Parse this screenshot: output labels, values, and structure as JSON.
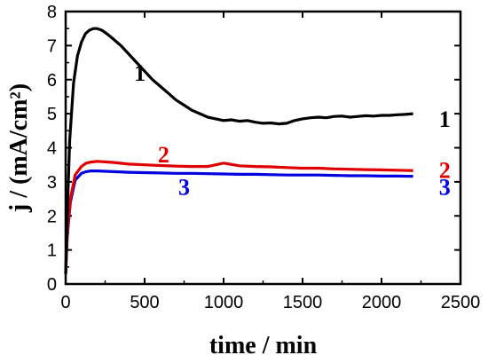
{
  "chart_data": {
    "type": "line",
    "title": "",
    "xlabel": "time / min",
    "ylabel": "j / (mA/cm²)",
    "xlim": [
      0,
      2500
    ],
    "ylim": [
      0,
      8
    ],
    "xticks": [
      "0",
      "500",
      "1000",
      "1500",
      "2000",
      "2500"
    ],
    "yticks": [
      "0",
      "1",
      "2",
      "3",
      "4",
      "5",
      "6",
      "7",
      "8"
    ],
    "grid": false,
    "legend": "none",
    "series": [
      {
        "name": "1",
        "color": "#000000",
        "x": [
          0,
          10,
          25,
          50,
          75,
          100,
          125,
          150,
          175,
          200,
          230,
          260,
          300,
          350,
          400,
          450,
          500,
          550,
          600,
          650,
          700,
          750,
          800,
          850,
          900,
          950,
          1000,
          1050,
          1100,
          1150,
          1200,
          1250,
          1300,
          1350,
          1400,
          1450,
          1500,
          1550,
          1600,
          1650,
          1700,
          1750,
          1800,
          1850,
          1900,
          1950,
          2000,
          2050,
          2100,
          2150,
          2200
        ],
        "y": [
          0.3,
          2.0,
          4.2,
          5.9,
          6.7,
          7.1,
          7.35,
          7.45,
          7.5,
          7.5,
          7.45,
          7.35,
          7.2,
          7.0,
          6.75,
          6.5,
          6.25,
          6.0,
          5.8,
          5.6,
          5.4,
          5.25,
          5.1,
          5.0,
          4.9,
          4.85,
          4.8,
          4.82,
          4.78,
          4.8,
          4.75,
          4.72,
          4.73,
          4.7,
          4.72,
          4.8,
          4.85,
          4.88,
          4.9,
          4.88,
          4.92,
          4.93,
          4.9,
          4.92,
          4.94,
          4.93,
          4.95,
          4.95,
          4.97,
          4.98,
          5.0
        ]
      },
      {
        "name": "2",
        "color": "#e00000",
        "x": [
          0,
          10,
          30,
          60,
          100,
          130,
          160,
          200,
          300,
          400,
          500,
          600,
          700,
          800,
          900,
          1000,
          1100,
          1200,
          1300,
          1400,
          1500,
          1600,
          1700,
          1800,
          1900,
          2000,
          2100,
          2200
        ],
        "y": [
          0.3,
          1.5,
          2.5,
          3.2,
          3.45,
          3.55,
          3.58,
          3.6,
          3.57,
          3.52,
          3.5,
          3.48,
          3.46,
          3.45,
          3.45,
          3.55,
          3.47,
          3.45,
          3.44,
          3.42,
          3.4,
          3.4,
          3.38,
          3.37,
          3.36,
          3.35,
          3.34,
          3.33
        ]
      },
      {
        "name": "3",
        "color": "#0000e0",
        "x": [
          0,
          10,
          30,
          60,
          100,
          130,
          160,
          200,
          300,
          400,
          500,
          600,
          700,
          800,
          900,
          1000,
          1100,
          1200,
          1300,
          1400,
          1500,
          1600,
          1700,
          1800,
          1900,
          2000,
          2100,
          2200
        ],
        "y": [
          0.3,
          1.4,
          2.4,
          3.05,
          3.25,
          3.3,
          3.32,
          3.32,
          3.3,
          3.28,
          3.27,
          3.26,
          3.25,
          3.25,
          3.24,
          3.23,
          3.22,
          3.22,
          3.21,
          3.2,
          3.2,
          3.2,
          3.19,
          3.18,
          3.18,
          3.17,
          3.17,
          3.16
        ]
      }
    ],
    "annotations": [
      {
        "text": "1",
        "x": 470,
        "y": 6.2,
        "color": "#000000"
      },
      {
        "text": "1",
        "x": 2400,
        "y": 4.85,
        "color": "#000000"
      },
      {
        "text": "2",
        "x": 620,
        "y": 3.8,
        "color": "#e00000"
      },
      {
        "text": "2",
        "x": 2400,
        "y": 3.35,
        "color": "#e00000"
      },
      {
        "text": "3",
        "x": 750,
        "y": 2.85,
        "color": "#0000e0"
      },
      {
        "text": "3",
        "x": 2400,
        "y": 2.85,
        "color": "#0000e0"
      }
    ]
  }
}
